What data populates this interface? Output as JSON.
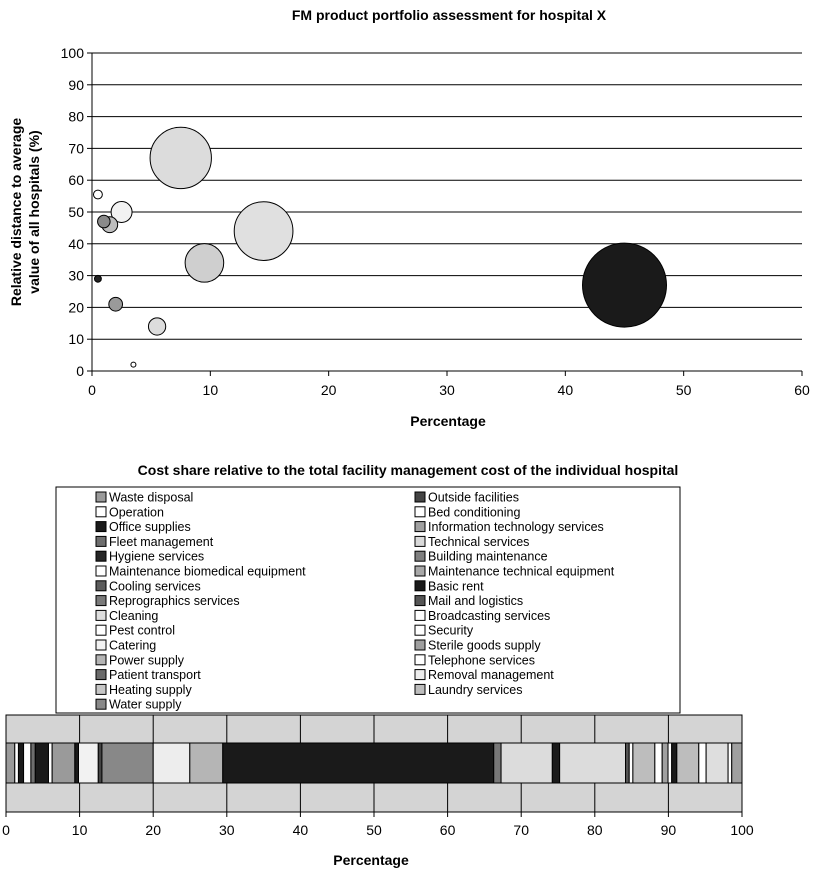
{
  "chart_data": [
    {
      "type": "scatter",
      "variant": "bubble",
      "title": "FM product portfolio assessment for hospital X",
      "xlabel": "Percentage",
      "ylabel": "Relative distance to average value of all hospitals (%)",
      "ylabel_lines": [
        "Relative distance to average",
        "value of all hospitals (%)"
      ],
      "xlim": [
        0,
        60
      ],
      "ylim": [
        0,
        100
      ],
      "xticks": [
        "0",
        "10",
        "20",
        "30",
        "40",
        "50",
        "60"
      ],
      "yticks": [
        "0",
        "10",
        "20",
        "30",
        "40",
        "50",
        "60",
        "70",
        "80",
        "90",
        "100"
      ],
      "grid": "horizontal",
      "points": [
        {
          "x": 0.5,
          "y": 55.5,
          "size": 0.5,
          "color": "#ffffff"
        },
        {
          "x": 0.5,
          "y": 29,
          "size": 0.3,
          "color": "#222222"
        },
        {
          "x": 1.0,
          "y": 47,
          "size": 1.0,
          "color": "#8a8a8a"
        },
        {
          "x": 1.5,
          "y": 46,
          "size": 1.6,
          "color": "#bdbdbd"
        },
        {
          "x": 2.5,
          "y": 50,
          "size": 2.8,
          "color": "#f2f2f2"
        },
        {
          "x": 2.0,
          "y": 21,
          "size": 1.2,
          "color": "#9a9a9a"
        },
        {
          "x": 3.5,
          "y": 2,
          "size": 0.15,
          "color": "#ffffff"
        },
        {
          "x": 5.5,
          "y": 14,
          "size": 1.9,
          "color": "#dcdcdc"
        },
        {
          "x": 7.5,
          "y": 67,
          "size": 24,
          "color": "#dcdcdc"
        },
        {
          "x": 9.5,
          "y": 34,
          "size": 9.5,
          "color": "#cfcfcf"
        },
        {
          "x": 14.5,
          "y": 44,
          "size": 22,
          "color": "#e0e0e0"
        },
        {
          "x": 45,
          "y": 27,
          "size": 45,
          "color": "#1a1a1a"
        }
      ]
    },
    {
      "type": "bar",
      "variant": "100%-stacked-horizontal",
      "title": "Cost share relative to the total facility management cost of the individual hospital",
      "xlabel": "Percentage",
      "xlim": [
        0,
        100
      ],
      "xticks": [
        "0",
        "10",
        "20",
        "30",
        "40",
        "50",
        "60",
        "70",
        "80",
        "90",
        "100"
      ],
      "legend_position": "top",
      "legend_columns": [
        [
          {
            "name": "Waste disposal",
            "color": "#9a9a9a"
          },
          {
            "name": "Operation",
            "color": "#ffffff"
          },
          {
            "name": "Office supplies",
            "color": "#1a1a1a"
          },
          {
            "name": "Fleet management",
            "color": "#6e6e6e"
          },
          {
            "name": "Hygiene services",
            "color": "#262626"
          },
          {
            "name": "Maintenance biomedical equipment",
            "color": "#ffffff"
          },
          {
            "name": "Cooling services",
            "color": "#5c5c5c"
          },
          {
            "name": "Reprographics services",
            "color": "#7a7a7a"
          },
          {
            "name": "Cleaning",
            "color": "#dedede"
          },
          {
            "name": "Pest control",
            "color": "#ffffff"
          },
          {
            "name": "Catering",
            "color": "#f2f2f2"
          },
          {
            "name": "Power supply",
            "color": "#b5b5b5"
          },
          {
            "name": "Patient transport",
            "color": "#6a6a6a"
          },
          {
            "name": "Heating supply",
            "color": "#c7c7c7"
          },
          {
            "name": "Water supply",
            "color": "#888888"
          }
        ],
        [
          {
            "name": "Outside facilities",
            "color": "#444444"
          },
          {
            "name": "Bed conditioning",
            "color": "#ffffff"
          },
          {
            "name": "Information technology services",
            "color": "#a0a0a0"
          },
          {
            "name": "Technical services",
            "color": "#d9d9d9"
          },
          {
            "name": "Building maintenance",
            "color": "#7f7f7f"
          },
          {
            "name": "Maintenance technical equipment",
            "color": "#a8a8a8"
          },
          {
            "name": "Basic rent",
            "color": "#1a1a1a"
          },
          {
            "name": "Mail and logistics",
            "color": "#555555"
          },
          {
            "name": "Broadcasting services",
            "color": "#ffffff"
          },
          {
            "name": "Security",
            "color": "#ffffff"
          },
          {
            "name": "Sterile goods supply",
            "color": "#9f9f9f"
          },
          {
            "name": "Telephone services",
            "color": "#ffffff"
          },
          {
            "name": "Removal management",
            "color": "#ededed"
          },
          {
            "name": "Laundry services",
            "color": "#bdbdbd"
          }
        ]
      ],
      "segments": [
        {
          "value": 1.2,
          "color": "#9a9a9a"
        },
        {
          "value": 0.5,
          "color": "#ffffff"
        },
        {
          "value": 0.7,
          "color": "#1a1a1a"
        },
        {
          "value": 1.0,
          "color": "#ffffff"
        },
        {
          "value": 0.6,
          "color": "#6e6e6e"
        },
        {
          "value": 1.8,
          "color": "#1a1a1a"
        },
        {
          "value": 0.5,
          "color": "#ffffff"
        },
        {
          "value": 3.1,
          "color": "#9a9a9a"
        },
        {
          "value": 0.5,
          "color": "#1a1a1a"
        },
        {
          "value": 2.7,
          "color": "#f2f2f2"
        },
        {
          "value": 0.5,
          "color": "#444444"
        },
        {
          "value": 7.0,
          "color": "#888888"
        },
        {
          "value": 5.0,
          "color": "#ededed"
        },
        {
          "value": 4.5,
          "color": "#b5b5b5"
        },
        {
          "value": 37.0,
          "color": "#1a1a1a"
        },
        {
          "value": 1.0,
          "color": "#777777"
        },
        {
          "value": 7.0,
          "color": "#dcdcdc"
        },
        {
          "value": 1.0,
          "color": "#1a1a1a"
        },
        {
          "value": 9.0,
          "color": "#dcdcdc"
        },
        {
          "value": 0.5,
          "color": "#555555"
        },
        {
          "value": 0.5,
          "color": "#ffffff"
        },
        {
          "value": 3.0,
          "color": "#bdbdbd"
        },
        {
          "value": 1.0,
          "color": "#ffffff"
        },
        {
          "value": 0.8,
          "color": "#a0a0a0"
        },
        {
          "value": 0.5,
          "color": "#ffffff"
        },
        {
          "value": 0.7,
          "color": "#1a1a1a"
        },
        {
          "value": 3.0,
          "color": "#bdbdbd"
        },
        {
          "value": 1.0,
          "color": "#ffffff"
        },
        {
          "value": 3.0,
          "color": "#dedede"
        },
        {
          "value": 0.5,
          "color": "#ffffff"
        },
        {
          "value": 1.4,
          "color": "#9f9f9f"
        }
      ]
    }
  ]
}
